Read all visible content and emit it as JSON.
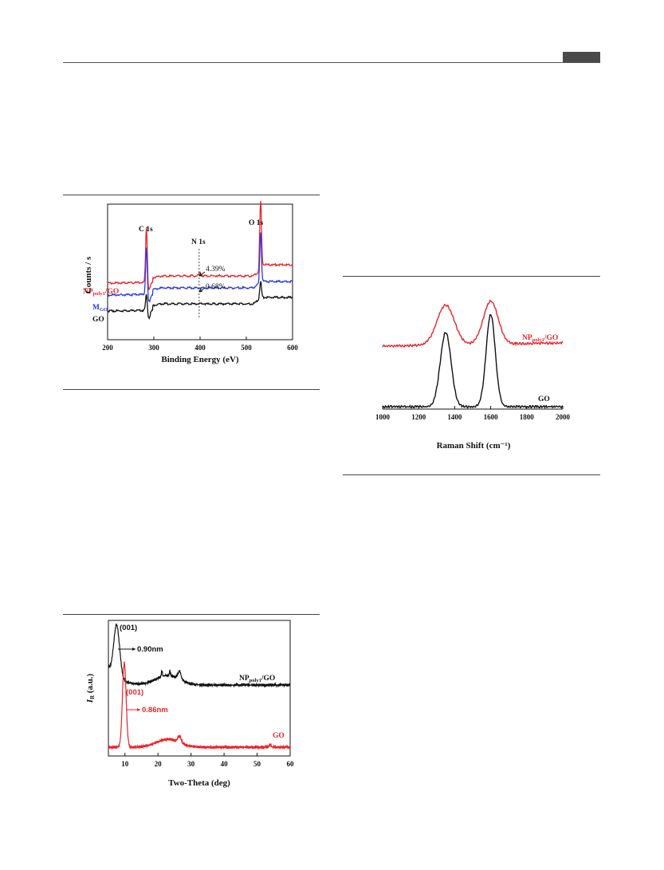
{
  "header": {
    "page_box": ""
  },
  "chart_data": [
    {
      "type": "line",
      "title": "",
      "xlabel": "Binding Energy (eV)",
      "ylabel": "Counts / s",
      "xlim": [
        200,
        600
      ],
      "xticks": [
        "200",
        "300",
        "400",
        "500",
        "600"
      ],
      "grid": false,
      "series": [
        {
          "name": "NPpoly1/GO",
          "name_main": "NP",
          "name_sub": "poly1",
          "name_tail": "/GO",
          "color": "#e8242b"
        },
        {
          "name": "MGO",
          "name_main": "M",
          "name_sub": "GO",
          "name_tail": "",
          "color": "#2a3be0"
        },
        {
          "name": "GO",
          "name_main": "GO",
          "name_sub": "",
          "name_tail": "",
          "color": "#111111"
        }
      ],
      "annotations": [
        "C 1s",
        "N 1s",
        "O 1s",
        "4.39%",
        "0.68%"
      ],
      "marker_line_x": 398
    },
    {
      "type": "line",
      "title": "",
      "xlabel": "Raman Shift (cm⁻¹)",
      "ylabel": "",
      "xlim": [
        1000,
        2000
      ],
      "xticks": [
        "1000",
        "1200",
        "1400",
        "1600",
        "1800",
        "2000"
      ],
      "grid": false,
      "peaks": {
        "D_band": 1350,
        "G_band": 1600
      },
      "series": [
        {
          "name": "NPpoly1/GO",
          "name_main": "NP",
          "name_sub": "poly1",
          "name_tail": "/GO",
          "color": "#e8242b"
        },
        {
          "name": "GO",
          "name_main": "GO",
          "name_sub": "",
          "name_tail": "",
          "color": "#111111"
        }
      ]
    },
    {
      "type": "line",
      "title": "",
      "xlabel": "Two-Theta (deg)",
      "ylabel": "IR (a.u.)",
      "ylabel_main": "I",
      "ylabel_sub": "R",
      "ylabel_tail": " (a.u.)",
      "xlim": [
        5,
        60
      ],
      "xticks": [
        "10",
        "20",
        "30",
        "40",
        "50",
        "60"
      ],
      "grid": false,
      "series": [
        {
          "name": "NPpoly1/GO",
          "name_main": "NP",
          "name_sub": "poly1",
          "name_tail": "/GO",
          "color": "#111111",
          "peak_2theta": 7.5
        },
        {
          "name": "GO",
          "name_main": "GO",
          "name_sub": "",
          "name_tail": "",
          "color": "#e8242b",
          "peak_2theta": 9.8
        }
      ],
      "annotations": [
        {
          "text": "(001)",
          "color": "#111111"
        },
        {
          "text": "0.90nm",
          "color": "#111111"
        },
        {
          "text": "(001)",
          "color": "#e8242b"
        },
        {
          "text": "0.86nm",
          "color": "#e8242b"
        }
      ]
    }
  ]
}
